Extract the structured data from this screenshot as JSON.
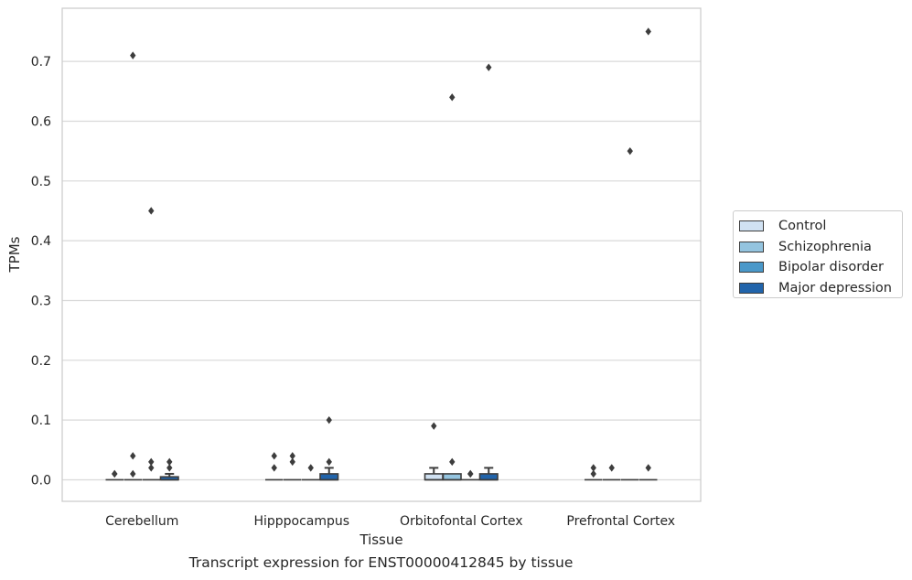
{
  "chart_data": {
    "type": "box",
    "title": "Transcript expression for ENST00000412845 by tissue",
    "xlabel": "Tissue",
    "ylabel": "TPMs",
    "ylim": [
      -0.036,
      0.789
    ],
    "yticks": [
      0.0,
      0.1,
      0.2,
      0.3,
      0.4,
      0.5,
      0.6,
      0.7
    ],
    "ytick_labels": [
      "0.0",
      "0.1",
      "0.2",
      "0.3",
      "0.4",
      "0.5",
      "0.6",
      "0.7"
    ],
    "grid": "horizontal",
    "legend_position": "right",
    "categories": [
      "Cerebellum",
      "Hipppocampus",
      "Orbitofontal Cortex",
      "Prefrontal Cortex"
    ],
    "series": [
      {
        "name": "Control",
        "color": "#d0e1f2",
        "boxes": [
          {
            "q1": 0,
            "median": 0,
            "q3": 0,
            "whisker_low": 0,
            "whisker_high": 0,
            "outliers": [
              0.01,
              0.01
            ]
          },
          {
            "q1": 0,
            "median": 0,
            "q3": 0,
            "whisker_low": 0,
            "whisker_high": 0,
            "outliers": [
              0.02,
              0.04
            ]
          },
          {
            "q1": 0,
            "median": 0,
            "q3": 0.01,
            "whisker_low": 0,
            "whisker_high": 0.02,
            "outliers": [
              0.09
            ]
          },
          {
            "q1": 0,
            "median": 0,
            "q3": 0,
            "whisker_low": 0,
            "whisker_high": 0,
            "outliers": [
              0.01,
              0.02
            ]
          }
        ]
      },
      {
        "name": "Schizophrenia",
        "color": "#94c4df",
        "boxes": [
          {
            "q1": 0,
            "median": 0,
            "q3": 0,
            "whisker_low": 0,
            "whisker_high": 0,
            "outliers": [
              0.01,
              0.04,
              0.71
            ]
          },
          {
            "q1": 0,
            "median": 0,
            "q3": 0,
            "whisker_low": 0,
            "whisker_high": 0,
            "outliers": [
              0.03,
              0.04
            ]
          },
          {
            "q1": 0,
            "median": 0,
            "q3": 0.01,
            "whisker_low": 0,
            "whisker_high": 0.01,
            "outliers": [
              0.03,
              0.64
            ]
          },
          {
            "q1": 0,
            "median": 0,
            "q3": 0,
            "whisker_low": 0,
            "whisker_high": 0,
            "outliers": [
              0.02
            ]
          }
        ]
      },
      {
        "name": "Bipolar disorder",
        "color": "#4a98c9",
        "boxes": [
          {
            "q1": 0,
            "median": 0,
            "q3": 0,
            "whisker_low": 0,
            "whisker_high": 0,
            "outliers": [
              0.02,
              0.03,
              0.45
            ]
          },
          {
            "q1": 0,
            "median": 0,
            "q3": 0,
            "whisker_low": 0,
            "whisker_high": 0,
            "outliers": [
              0.02
            ]
          },
          {
            "q1": 0,
            "median": 0,
            "q3": 0,
            "whisker_low": 0,
            "whisker_high": 0,
            "outliers": [
              0.01,
              0.01
            ]
          },
          {
            "q1": 0,
            "median": 0,
            "q3": 0,
            "whisker_low": 0,
            "whisker_high": 0,
            "outliers": [
              0.55
            ]
          }
        ]
      },
      {
        "name": "Major depression",
        "color": "#2164ab",
        "boxes": [
          {
            "q1": 0,
            "median": 0,
            "q3": 0.005,
            "whisker_low": 0,
            "whisker_high": 0.01,
            "outliers": [
              0.02,
              0.03
            ]
          },
          {
            "q1": 0,
            "median": 0,
            "q3": 0.01,
            "whisker_low": 0,
            "whisker_high": 0.02,
            "outliers": [
              0.03,
              0.1
            ]
          },
          {
            "q1": 0,
            "median": 0,
            "q3": 0.01,
            "whisker_low": 0,
            "whisker_high": 0.02,
            "outliers": [
              0.69
            ]
          },
          {
            "q1": 0,
            "median": 0,
            "q3": 0,
            "whisker_low": 0,
            "whisker_high": 0,
            "outliers": [
              0.02,
              0.75
            ]
          }
        ]
      }
    ]
  }
}
